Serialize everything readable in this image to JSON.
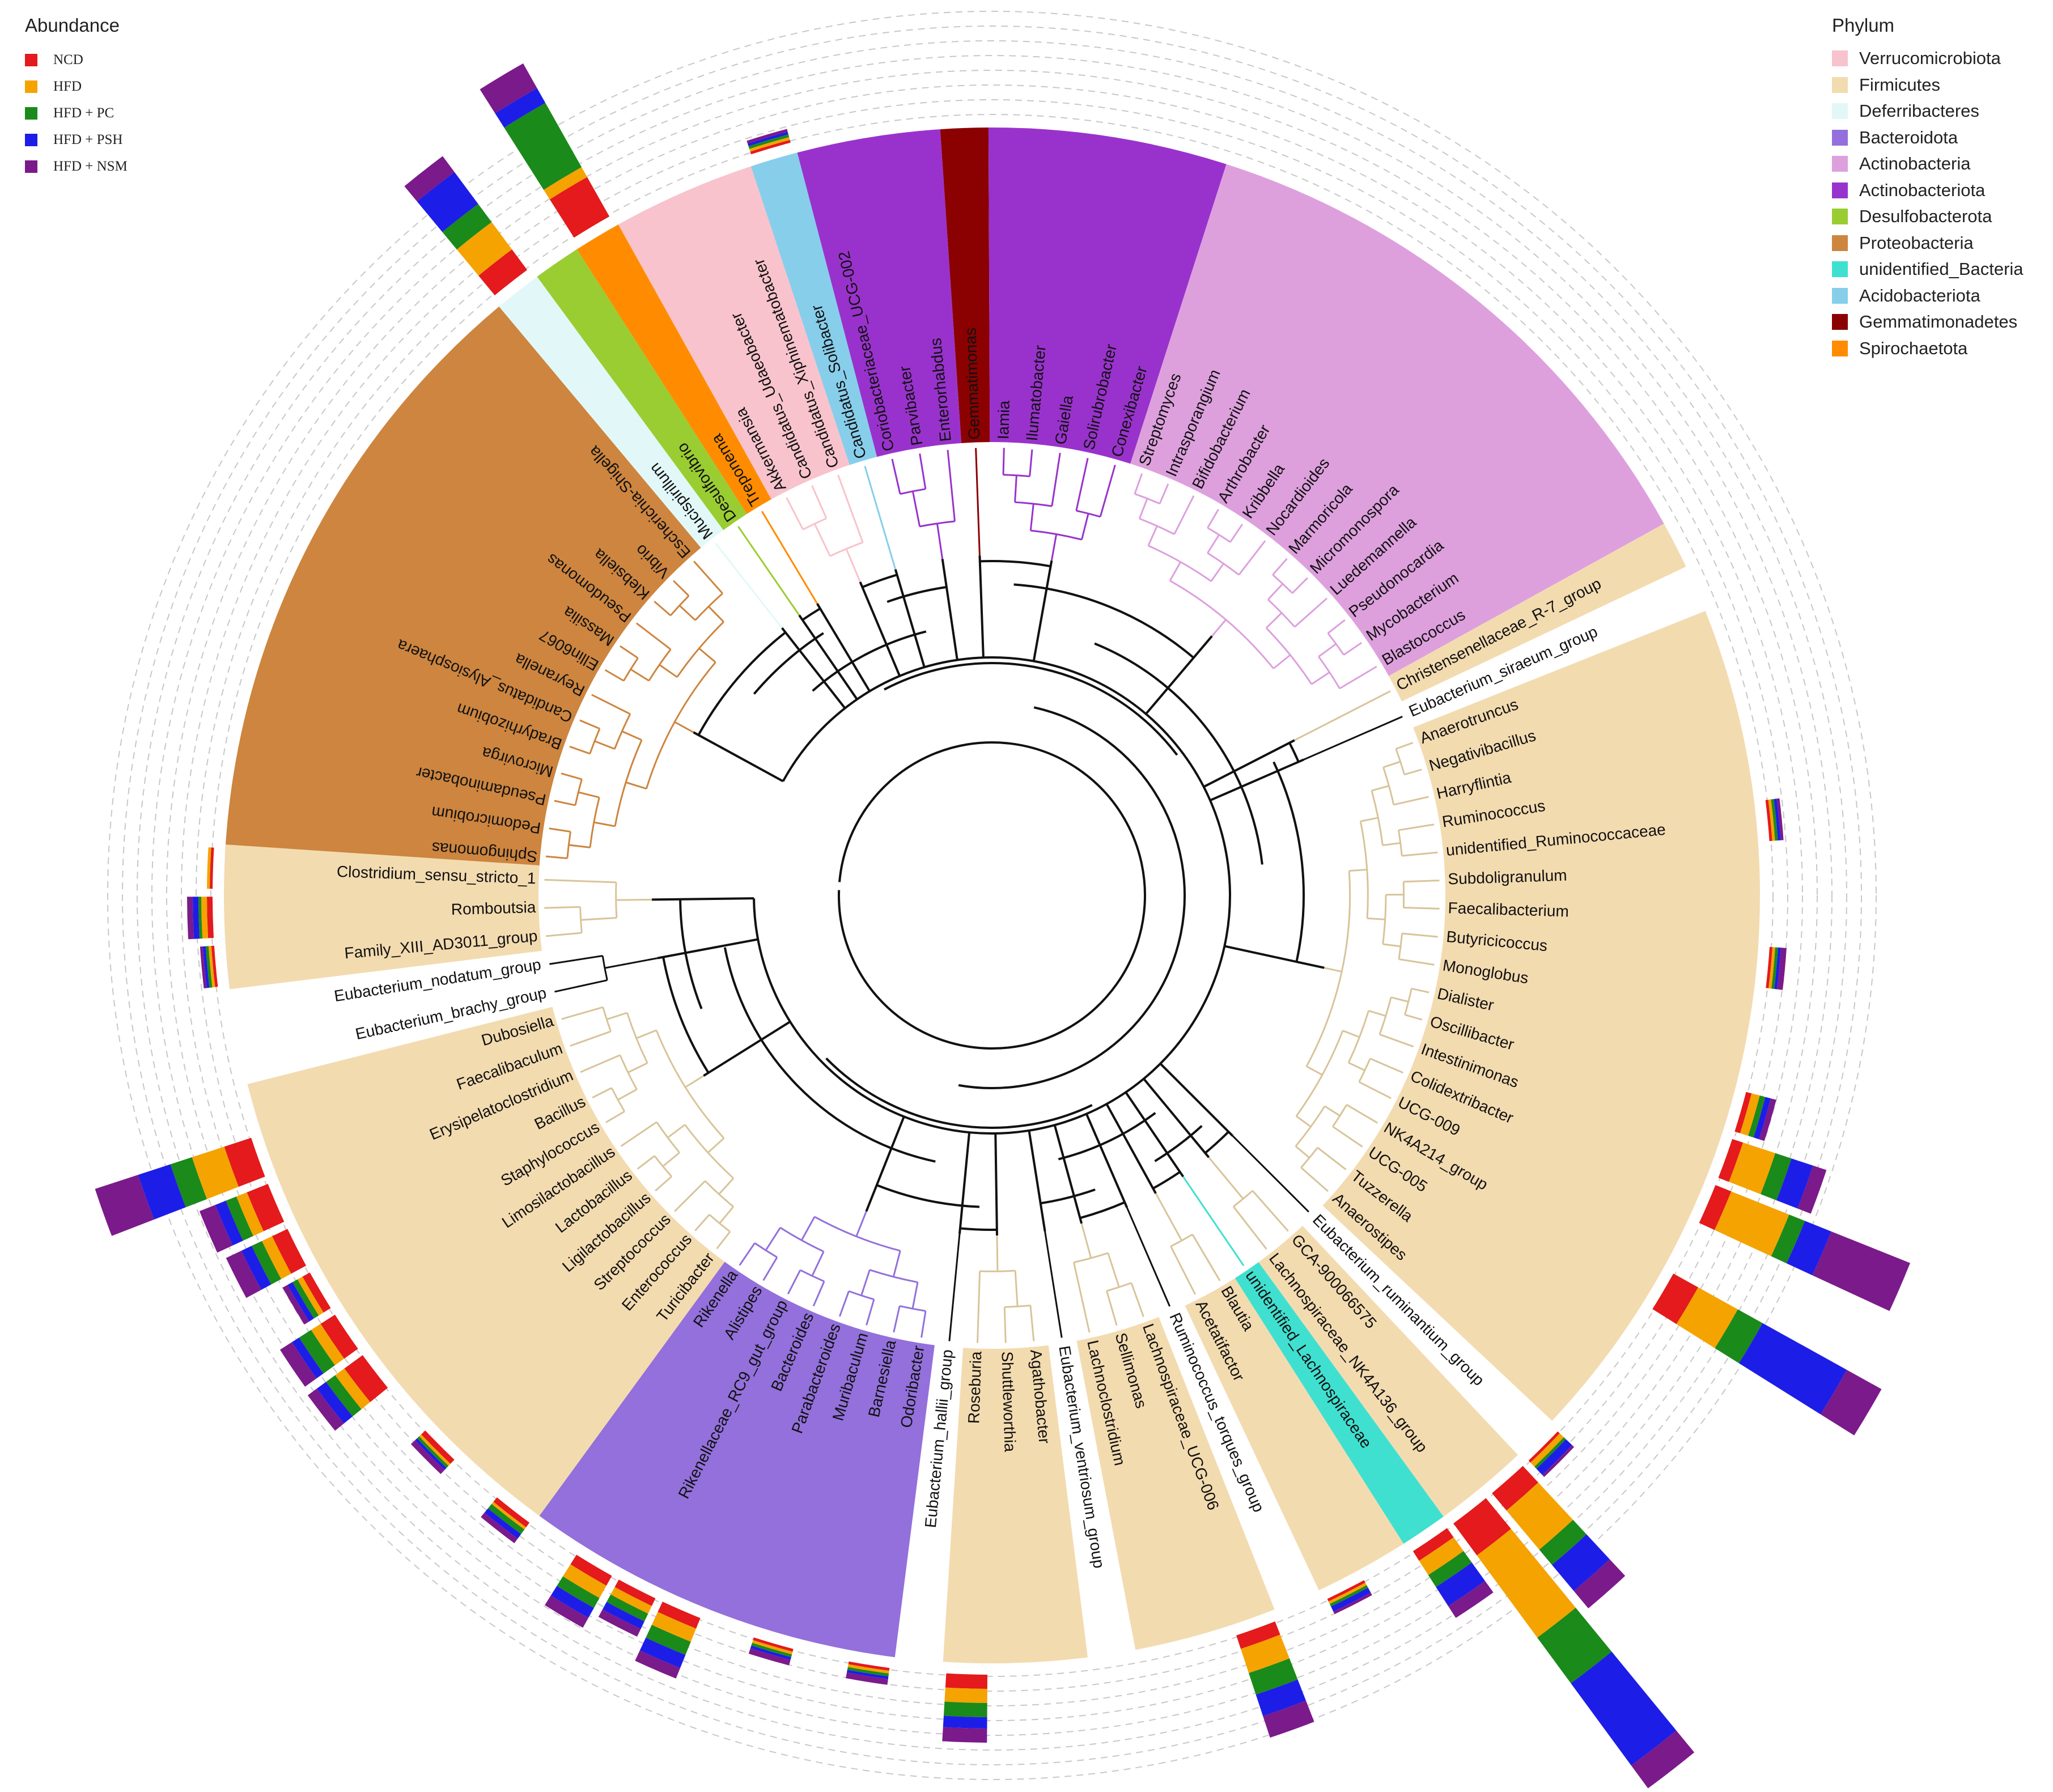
{
  "legends": {
    "abundance": {
      "title": "Abundance",
      "items": [
        {
          "label": "NCD",
          "color": "#e41a1c"
        },
        {
          "label": "HFD",
          "color": "#f5a300"
        },
        {
          "label": "HFD + PC",
          "color": "#1a8a1a"
        },
        {
          "label": "HFD + PSH",
          "color": "#1d1de8"
        },
        {
          "label": "HFD + NSM",
          "color": "#7b1a8a"
        }
      ]
    },
    "phylum": {
      "title": "Phylum",
      "items": [
        {
          "label": "Verrucomicrobiota",
          "color": "#f8c3cc"
        },
        {
          "label": "Firmicutes",
          "color": "#f3dbb0"
        },
        {
          "label": "Deferribacteres",
          "color": "#e2f8f8"
        },
        {
          "label": "Bacteroidota",
          "color": "#9370db"
        },
        {
          "label": "Actinobacteria",
          "color": "#dda0dd"
        },
        {
          "label": "Actinobacteriota",
          "color": "#9932cc"
        },
        {
          "label": "Desulfobacterota",
          "color": "#9acd32"
        },
        {
          "label": "Proteobacteria",
          "color": "#cd853f"
        },
        {
          "label": "unidentified_Bacteria",
          "color": "#40e0d0"
        },
        {
          "label": "Acidobacteriota",
          "color": "#87ceeb"
        },
        {
          "label": "Gemmatimonadetes",
          "color": "#8b0000"
        },
        {
          "label": "Spirochaetota",
          "color": "#ff8c00"
        }
      ]
    }
  },
  "tree": {
    "leaves": [
      {
        "name": "Sphingomonas",
        "phylum": "Proteobacteria",
        "abund": [
          0,
          0,
          0,
          0,
          0
        ]
      },
      {
        "name": "Pedomicrobium",
        "phylum": "Proteobacteria",
        "abund": [
          0,
          0,
          0,
          0,
          0
        ]
      },
      {
        "name": "Pseudaminobacter",
        "phylum": "Proteobacteria",
        "abund": [
          0,
          0,
          0,
          0,
          0
        ]
      },
      {
        "name": "Microvirga",
        "phylum": "Proteobacteria",
        "abund": [
          0,
          0,
          0,
          0,
          0
        ]
      },
      {
        "name": "Bradyrhizobium",
        "phylum": "Proteobacteria",
        "abund": [
          0,
          0,
          0,
          0,
          0
        ]
      },
      {
        "name": "Candidatus_Alysiosphaera",
        "phylum": "Proteobacteria",
        "abund": [
          0,
          0,
          0,
          0,
          0
        ]
      },
      {
        "name": "Reyranella",
        "phylum": "Proteobacteria",
        "abund": [
          0,
          0,
          0,
          0,
          0
        ]
      },
      {
        "name": "Ellin6067",
        "phylum": "Proteobacteria",
        "abund": [
          0,
          0,
          0,
          0,
          0
        ]
      },
      {
        "name": "Massilia",
        "phylum": "Proteobacteria",
        "abund": [
          0,
          0,
          0,
          0,
          0
        ]
      },
      {
        "name": "Pseudomonas",
        "phylum": "Proteobacteria",
        "abund": [
          0,
          0,
          0,
          0,
          0
        ]
      },
      {
        "name": "Klebsiella",
        "phylum": "Proteobacteria",
        "abund": [
          0,
          0,
          0,
          0,
          0
        ]
      },
      {
        "name": "Vibrio",
        "phylum": "Proteobacteria",
        "abund": [
          0,
          0,
          0,
          0,
          0
        ]
      },
      {
        "name": "Escherichia-Shigella",
        "phylum": "Proteobacteria",
        "abund": [
          0,
          0,
          0,
          0,
          0
        ]
      },
      {
        "name": "Mucispirillum",
        "phylum": "Deferribacteres",
        "abund": [
          0.09,
          0.12,
          0.08,
          0.14,
          0.07
        ]
      },
      {
        "name": "Desulfovibrio",
        "phylum": "Desulfobacterota",
        "abund": [
          0,
          0,
          0,
          0,
          0
        ]
      },
      {
        "name": "Treponema",
        "phylum": "Spirochaetota",
        "abund": [
          0.16,
          0.04,
          0.26,
          0.06,
          0.1
        ]
      },
      {
        "name": "Akkermansia",
        "phylum": "Verrucomicrobiota",
        "abund": [
          0,
          0,
          0,
          0,
          0
        ]
      },
      {
        "name": "Candidatus_Udaeobacter",
        "phylum": "Verrucomicrobiota",
        "abund": [
          0,
          0,
          0,
          0,
          0
        ]
      },
      {
        "name": "Candidatus_Xiphinematobacter",
        "phylum": "Verrucomicrobiota",
        "abund": [
          0,
          0,
          0,
          0,
          0
        ]
      },
      {
        "name": "Candidatus_Solibacter",
        "phylum": "Acidobacteriota",
        "abund": [
          0.01,
          0.01,
          0.01,
          0.01,
          0.01
        ]
      },
      {
        "name": "Coriobacteriaceae_UCG-002",
        "phylum": "Actinobacteriota",
        "abund": [
          0,
          0,
          0,
          0,
          0
        ]
      },
      {
        "name": "Parvibacter",
        "phylum": "Actinobacteriota",
        "abund": [
          0,
          0,
          0,
          0,
          0
        ]
      },
      {
        "name": "Enterorhabdus",
        "phylum": "Actinobacteriota",
        "abund": [
          0,
          0,
          0,
          0,
          0
        ]
      },
      {
        "name": "Gemmatimonas",
        "phylum": "Gemmatimonadetes",
        "abund": [
          0,
          0,
          0,
          0,
          0
        ]
      },
      {
        "name": "Iamia",
        "phylum": "Actinobacteriota",
        "abund": [
          0,
          0,
          0,
          0,
          0
        ]
      },
      {
        "name": "Ilumatobacter",
        "phylum": "Actinobacteriota",
        "abund": [
          0,
          0,
          0,
          0,
          0
        ]
      },
      {
        "name": "Gaiella",
        "phylum": "Actinobacteriota",
        "abund": [
          0,
          0,
          0,
          0,
          0
        ]
      },
      {
        "name": "Solirubrobacter",
        "phylum": "Actinobacteriota",
        "abund": [
          0,
          0,
          0,
          0,
          0
        ]
      },
      {
        "name": "Conexibacter",
        "phylum": "Actinobacteriota",
        "abund": [
          0,
          0,
          0,
          0,
          0
        ]
      },
      {
        "name": "Streptomyces",
        "phylum": "Actinobacteria",
        "abund": [
          0,
          0,
          0,
          0,
          0
        ]
      },
      {
        "name": "Intrasporangium",
        "phylum": "Actinobacteria",
        "abund": [
          0,
          0,
          0,
          0,
          0
        ]
      },
      {
        "name": "Bifidobacterium",
        "phylum": "Actinobacteria",
        "abund": [
          0,
          0,
          0,
          0,
          0
        ]
      },
      {
        "name": "Arthrobacter",
        "phylum": "Actinobacteria",
        "abund": [
          0,
          0,
          0,
          0,
          0
        ]
      },
      {
        "name": "Kribbella",
        "phylum": "Actinobacteria",
        "abund": [
          0,
          0,
          0,
          0,
          0
        ]
      },
      {
        "name": "Nocardioides",
        "phylum": "Actinobacteria",
        "abund": [
          0,
          0,
          0,
          0,
          0
        ]
      },
      {
        "name": "Marmoricola",
        "phylum": "Actinobacteria",
        "abund": [
          0,
          0,
          0,
          0,
          0
        ]
      },
      {
        "name": "Micromonospora",
        "phylum": "Actinobacteria",
        "abund": [
          0,
          0,
          0,
          0,
          0
        ]
      },
      {
        "name": "Luedemannella",
        "phylum": "Actinobacteria",
        "abund": [
          0,
          0,
          0,
          0,
          0
        ]
      },
      {
        "name": "Pseudonocardia",
        "phylum": "Actinobacteria",
        "abund": [
          0,
          0,
          0,
          0,
          0
        ]
      },
      {
        "name": "Mycobacterium",
        "phylum": "Actinobacteria",
        "abund": [
          0,
          0,
          0,
          0,
          0
        ]
      },
      {
        "name": "Blastococcus",
        "phylum": "Actinobacteria",
        "abund": [
          0,
          0,
          0,
          0,
          0
        ]
      },
      {
        "name": "Christensenellaceae_R-7_group",
        "phylum": "Firmicutes",
        "abund": [
          0,
          0,
          0,
          0,
          0
        ]
      },
      {
        "name": "Eubacterium_siraeum_group",
        "phylum": "",
        "abund": [
          0,
          0,
          0,
          0,
          0
        ]
      },
      {
        "name": "Anaerotruncus",
        "phylum": "Firmicutes",
        "abund": [
          0,
          0,
          0,
          0,
          0
        ]
      },
      {
        "name": "Negativibacillus",
        "phylum": "Firmicutes",
        "abund": [
          0,
          0,
          0,
          0,
          0
        ]
      },
      {
        "name": "Harryflintia",
        "phylum": "Firmicutes",
        "abund": [
          0,
          0,
          0,
          0,
          0
        ]
      },
      {
        "name": "Ruminococcus",
        "phylum": "Firmicutes",
        "abund": [
          0,
          0,
          0,
          0,
          0
        ]
      },
      {
        "name": "unidentified_Ruminococcaceae",
        "phylum": "Firmicutes",
        "abund": [
          0.01,
          0.01,
          0.01,
          0.01,
          0.01
        ]
      },
      {
        "name": "Subdoligranulum",
        "phylum": "Firmicutes",
        "abund": [
          0,
          0,
          0,
          0,
          0
        ]
      },
      {
        "name": "Faecalibacterium",
        "phylum": "Firmicutes",
        "abund": [
          0,
          0,
          0,
          0,
          0
        ]
      },
      {
        "name": "Butyricicoccus",
        "phylum": "Firmicutes",
        "abund": [
          0.01,
          0.01,
          0.01,
          0.01,
          0.02
        ]
      },
      {
        "name": "Monoglobus",
        "phylum": "Firmicutes",
        "abund": [
          0,
          0,
          0,
          0,
          0
        ]
      },
      {
        "name": "Dialister",
        "phylum": "Firmicutes",
        "abund": [
          0,
          0,
          0,
          0,
          0
        ]
      },
      {
        "name": "Oscillibacter",
        "phylum": "Firmicutes",
        "abund": [
          0.02,
          0.03,
          0.02,
          0.02,
          0.02
        ]
      },
      {
        "name": "Intestinimonas",
        "phylum": "Firmicutes",
        "abund": [
          0.04,
          0.12,
          0.06,
          0.08,
          0.05
        ]
      },
      {
        "name": "Colidextribacter",
        "phylum": "Firmicutes",
        "abund": [
          0.06,
          0.22,
          0.06,
          0.1,
          0.3
        ]
      },
      {
        "name": "UCG-009",
        "phylum": "Firmicutes",
        "abund": [
          0,
          0,
          0,
          0,
          0
        ]
      },
      {
        "name": "NK4A214_group",
        "phylum": "Firmicutes",
        "abund": [
          0.1,
          0.16,
          0.1,
          0.34,
          0.14
        ]
      },
      {
        "name": "UCG-005",
        "phylum": "Firmicutes",
        "abund": [
          0,
          0,
          0,
          0,
          0
        ]
      },
      {
        "name": "Tuzzerella",
        "phylum": "Firmicutes",
        "abund": [
          0,
          0,
          0,
          0,
          0
        ]
      },
      {
        "name": "Anaerostipes",
        "phylum": "Firmicutes",
        "abund": [
          0,
          0,
          0,
          0,
          0
        ]
      },
      {
        "name": "Eubacterium_ruminantium_group",
        "phylum": "",
        "abund": [
          0.01,
          0.02,
          0.01,
          0.03,
          0.01
        ]
      },
      {
        "name": "GCA-900066575",
        "phylum": "Firmicutes",
        "abund": [
          0.08,
          0.18,
          0.07,
          0.12,
          0.08
        ]
      },
      {
        "name": "Lachnospiraceae_NK4A136_group",
        "phylum": "Firmicutes",
        "abund": [
          0.14,
          0.36,
          0.2,
          0.36,
          0.1
        ]
      },
      {
        "name": "unidentified_Lachnospiraceae",
        "phylum": "unidentified_Bacteria",
        "abund": [
          0.04,
          0.06,
          0.05,
          0.08,
          0.05
        ]
      },
      {
        "name": "Blautia",
        "phylum": "Firmicutes",
        "abund": [
          0,
          0,
          0,
          0,
          0
        ]
      },
      {
        "name": "Acetatifactor",
        "phylum": "Firmicutes",
        "abund": [
          0.01,
          0.01,
          0.01,
          0.02,
          0.01
        ]
      },
      {
        "name": "Ruminococcus_torques_group",
        "phylum": "",
        "abund": [
          0,
          0,
          0,
          0,
          0
        ]
      },
      {
        "name": "Lachnospiraceae_UCG-006",
        "phylum": "Firmicutes",
        "abund": [
          0.05,
          0.09,
          0.08,
          0.08,
          0.08
        ]
      },
      {
        "name": "Sellimonas",
        "phylum": "Firmicutes",
        "abund": [
          0,
          0,
          0,
          0,
          0
        ]
      },
      {
        "name": "Lachnoclostridium",
        "phylum": "Firmicutes",
        "abund": [
          0,
          0,
          0,
          0,
          0
        ]
      },
      {
        "name": "Eubacterium_ventriosum_group",
        "phylum": "",
        "abund": [
          0,
          0,
          0,
          0,
          0
        ]
      },
      {
        "name": "Agathobacter",
        "phylum": "Firmicutes",
        "abund": [
          0,
          0,
          0,
          0,
          0
        ]
      },
      {
        "name": "Shuttleworthia",
        "phylum": "Firmicutes",
        "abund": [
          0,
          0,
          0,
          0,
          0
        ]
      },
      {
        "name": "Roseburia",
        "phylum": "Firmicutes",
        "abund": [
          0.05,
          0.05,
          0.05,
          0.04,
          0.05
        ]
      },
      {
        "name": "Eubacterium_hallii_group",
        "phylum": "",
        "abund": [
          0,
          0,
          0,
          0,
          0
        ]
      },
      {
        "name": "Odoribacter",
        "phylum": "Bacteroidota",
        "abund": [
          0.01,
          0.01,
          0.01,
          0.01,
          0.02
        ]
      },
      {
        "name": "Barnesiella",
        "phylum": "Bacteroidota",
        "abund": [
          0,
          0,
          0,
          0,
          0
        ]
      },
      {
        "name": "Muribaculum",
        "phylum": "Bacteroidota",
        "abund": [
          0.01,
          0.01,
          0.01,
          0.01,
          0.02
        ]
      },
      {
        "name": "Parabacteroides",
        "phylum": "Bacteroidota",
        "abund": [
          0,
          0,
          0,
          0,
          0
        ]
      },
      {
        "name": "Bacteroides",
        "phylum": "Bacteroidota",
        "abund": [
          0.04,
          0.05,
          0.05,
          0.05,
          0.04
        ]
      },
      {
        "name": "Rikenellaceae_RC9_gut_group",
        "phylum": "Bacteroidota",
        "abund": [
          0.03,
          0.03,
          0.03,
          0.03,
          0.03
        ]
      },
      {
        "name": "Alistipes",
        "phylum": "Bacteroidota",
        "abund": [
          0.04,
          0.05,
          0.04,
          0.04,
          0.04
        ]
      },
      {
        "name": "Rikenella",
        "phylum": "Bacteroidota",
        "abund": [
          0,
          0,
          0,
          0,
          0
        ]
      },
      {
        "name": "Turicibacter",
        "phylum": "Firmicutes",
        "abund": [
          0.02,
          0.01,
          0.02,
          0.02,
          0.02
        ]
      },
      {
        "name": "Enterococcus",
        "phylum": "Firmicutes",
        "abund": [
          0,
          0,
          0,
          0,
          0
        ]
      },
      {
        "name": "Streptococcus",
        "phylum": "Firmicutes",
        "abund": [
          0.02,
          0.01,
          0.01,
          0.01,
          0.02
        ]
      },
      {
        "name": "Ligilactobacillus",
        "phylum": "Firmicutes",
        "abund": [
          0,
          0,
          0,
          0,
          0
        ]
      },
      {
        "name": "Lactobacillus",
        "phylum": "Firmicutes",
        "abund": [
          0.08,
          0.04,
          0.04,
          0.04,
          0.04
        ]
      },
      {
        "name": "Limosilactobacillus",
        "phylum": "Firmicutes",
        "abund": [
          0.06,
          0.04,
          0.05,
          0.03,
          0.05
        ]
      },
      {
        "name": "Staphylococcus",
        "phylum": "Firmicutes",
        "abund": [
          0.03,
          0.02,
          0.02,
          0.02,
          0.02
        ]
      },
      {
        "name": "Bacillus",
        "phylum": "Firmicutes",
        "abund": [
          0.06,
          0.04,
          0.04,
          0.04,
          0.06
        ]
      },
      {
        "name": "Erysipelatoclostridium",
        "phylum": "Firmicutes",
        "abund": [
          0.08,
          0.04,
          0.04,
          0.04,
          0.06
        ]
      },
      {
        "name": "Faecalibaculum",
        "phylum": "Firmicutes",
        "abund": [
          0.1,
          0.12,
          0.08,
          0.12,
          0.16
        ]
      },
      {
        "name": "Dubosiella",
        "phylum": "Firmicutes",
        "abund": [
          0,
          0,
          0,
          0,
          0
        ]
      },
      {
        "name": "Eubacterium_brachy_group",
        "phylum": "",
        "abund": [
          0,
          0,
          0,
          0,
          0
        ]
      },
      {
        "name": "Eubacterium_nodatum_group",
        "phylum": "",
        "abund": [
          0,
          0,
          0,
          0,
          0
        ]
      },
      {
        "name": "Family_XIII_AD3011_group",
        "phylum": "Firmicutes",
        "abund": [
          0.01,
          0.01,
          0.01,
          0.01,
          0.01
        ]
      },
      {
        "name": "Romboutsia",
        "phylum": "Firmicutes",
        "abund": [
          0.02,
          0.02,
          0.01,
          0.02,
          0.02
        ]
      },
      {
        "name": "Clostridium_sensu_stricto_1",
        "phylum": "Firmicutes",
        "abund": [
          0.01,
          0.01,
          0,
          0,
          0
        ]
      }
    ]
  }
}
